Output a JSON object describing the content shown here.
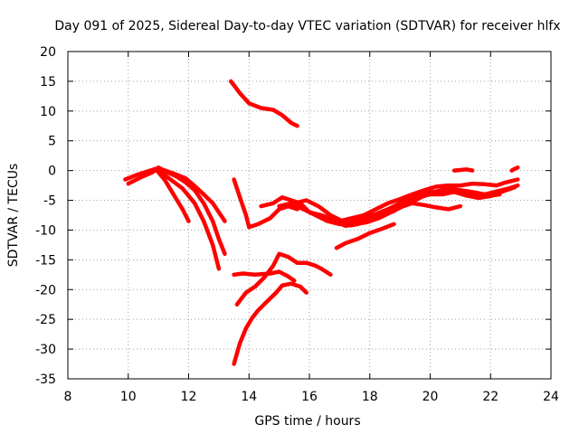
{
  "chart_data": {
    "type": "line",
    "title": "Day 091 of 2025, Sidereal Day-to-day VTEC variation (SDTVAR) for receiver hlfx",
    "xlabel": "GPS time / hours",
    "ylabel": "SDTVAR / TECUs",
    "xlim": [
      8,
      24
    ],
    "ylim": [
      -35,
      20
    ],
    "xticks": [
      8,
      10,
      12,
      14,
      16,
      18,
      20,
      22,
      24
    ],
    "yticks": [
      20,
      15,
      10,
      5,
      0,
      -5,
      -10,
      -15,
      -20,
      -25,
      -30,
      -35
    ],
    "grid": true,
    "color": "#ff0000",
    "series": [
      {
        "x": [
          9.9,
          10.3,
          10.6,
          10.9,
          11.2,
          11.5,
          11.8,
          12.0
        ],
        "y": [
          -1.5,
          -0.7,
          -0.2,
          0.3,
          -1.5,
          -4.0,
          -6.5,
          -8.5
        ]
      },
      {
        "x": [
          10.0,
          10.4,
          10.8,
          11.0,
          11.3,
          11.6,
          11.9,
          12.2,
          12.5,
          12.8,
          13.0,
          13.2
        ],
        "y": [
          -2.2,
          -1.2,
          -0.3,
          0.5,
          -0.3,
          -1.0,
          -2.0,
          -3.3,
          -5.5,
          -8.5,
          -11.5,
          -14.0
        ]
      },
      {
        "x": [
          11.0,
          11.4,
          11.8,
          12.2,
          12.5,
          12.8,
          13.0
        ],
        "y": [
          0.0,
          -1.5,
          -3.0,
          -5.5,
          -8.5,
          -12.5,
          -16.5
        ]
      },
      {
        "x": [
          11.1,
          11.5,
          11.9,
          12.2,
          12.5,
          12.8,
          13.0,
          13.2
        ],
        "y": [
          0.2,
          -0.5,
          -1.3,
          -2.6,
          -4.0,
          -5.5,
          -7.0,
          -8.5
        ]
      },
      {
        "x": [
          13.4,
          13.7,
          14.0,
          14.4,
          14.8,
          15.1,
          15.4,
          15.6
        ],
        "y": [
          15.0,
          13.0,
          11.3,
          10.5,
          10.2,
          9.3,
          8.0,
          7.5
        ]
      },
      {
        "x": [
          13.5,
          13.7,
          13.9,
          14.0
        ],
        "y": [
          -1.5,
          -4.5,
          -7.5,
          -9.5
        ]
      },
      {
        "x": [
          14.0,
          14.3,
          14.7,
          15.0,
          15.3,
          15.6
        ],
        "y": [
          -9.5,
          -9.0,
          -8.0,
          -6.5,
          -6.0,
          -6.5
        ]
      },
      {
        "x": [
          13.5,
          13.8,
          14.2,
          14.7,
          15.0,
          15.3,
          15.5
        ],
        "y": [
          -17.5,
          -17.3,
          -17.5,
          -17.3,
          -17.0,
          -17.8,
          -18.5
        ]
      },
      {
        "x": [
          13.6,
          13.9,
          14.2,
          14.5,
          14.8,
          15.0,
          15.3,
          15.6,
          15.9,
          16.2,
          16.4,
          16.7
        ],
        "y": [
          -22.5,
          -20.5,
          -19.5,
          -18.0,
          -16.0,
          -14.0,
          -14.5,
          -15.5,
          -15.5,
          -16.0,
          -16.5,
          -17.5
        ]
      },
      {
        "x": [
          13.5,
          13.7,
          13.9,
          14.1,
          14.3,
          14.5,
          14.7,
          14.9,
          15.1,
          15.4,
          15.7,
          15.9
        ],
        "y": [
          -32.5,
          -29.0,
          -26.5,
          -24.8,
          -23.5,
          -22.5,
          -21.5,
          -20.5,
          -19.3,
          -19.0,
          -19.5,
          -20.5
        ]
      },
      {
        "x": [
          14.4,
          14.8,
          15.1,
          15.4,
          15.7,
          16.0,
          16.4,
          16.7,
          17.0,
          17.4,
          17.8,
          18.2,
          18.6,
          19.0,
          19.4,
          19.8,
          20.2,
          20.6,
          21.0,
          21.4,
          21.8,
          22.2,
          22.5,
          22.9
        ],
        "y": [
          -6.0,
          -5.5,
          -4.5,
          -5.0,
          -5.5,
          -7.0,
          -7.5,
          -8.0,
          -8.5,
          -8.0,
          -7.5,
          -6.5,
          -5.5,
          -4.8,
          -4.0,
          -3.3,
          -2.7,
          -2.5,
          -2.5,
          -2.2,
          -2.3,
          -2.5,
          -2.0,
          -1.5
        ]
      },
      {
        "x": [
          15.0,
          15.4,
          15.8,
          16.2,
          16.6,
          17.0,
          17.4,
          17.8,
          18.2,
          18.6,
          19.0,
          19.4,
          19.8,
          20.2,
          20.6,
          21.0,
          21.4,
          21.8,
          22.2,
          22.6,
          22.9
        ],
        "y": [
          -6.0,
          -5.5,
          -6.5,
          -7.5,
          -8.5,
          -9.0,
          -8.7,
          -8.0,
          -7.3,
          -6.5,
          -5.5,
          -4.5,
          -3.8,
          -3.5,
          -3.0,
          -3.3,
          -3.6,
          -4.0,
          -3.5,
          -3.0,
          -2.5
        ]
      },
      {
        "x": [
          15.5,
          15.9,
          16.3,
          16.7,
          17.1,
          17.5,
          17.9,
          18.3,
          18.7,
          19.1,
          19.5,
          19.9,
          20.3,
          20.7,
          21.1,
          21.5,
          21.9,
          22.3
        ],
        "y": [
          -5.5,
          -5.0,
          -6.0,
          -7.5,
          -8.5,
          -9.0,
          -8.7,
          -8.0,
          -7.0,
          -6.0,
          -5.0,
          -4.0,
          -3.5,
          -3.5,
          -3.8,
          -4.0,
          -4.3,
          -4.0
        ]
      },
      {
        "x": [
          16.0,
          16.4,
          16.8,
          17.2,
          17.6,
          18.0,
          18.4,
          18.8,
          19.2,
          19.6,
          20.0,
          20.4,
          20.8,
          21.2,
          21.6,
          22.0,
          22.4,
          22.8
        ],
        "y": [
          -7.0,
          -7.8,
          -8.5,
          -9.3,
          -9.0,
          -8.3,
          -7.6,
          -6.8,
          -5.5,
          -4.5,
          -4.0,
          -4.0,
          -3.6,
          -4.2,
          -4.6,
          -4.3,
          -3.5,
          -2.8
        ]
      },
      {
        "x": [
          16.2,
          16.6,
          17.0,
          17.4,
          17.8,
          18.2,
          18.6,
          19.0,
          19.4,
          19.8,
          20.2,
          20.6,
          21.0
        ],
        "y": [
          -7.3,
          -8.0,
          -8.5,
          -9.2,
          -8.7,
          -7.8,
          -7.2,
          -6.2,
          -5.5,
          -5.8,
          -6.2,
          -6.5,
          -6.0
        ]
      },
      {
        "x": [
          16.9,
          17.2,
          17.6,
          18.0,
          18.4,
          18.8
        ],
        "y": [
          -13.0,
          -12.2,
          -11.5,
          -10.5,
          -9.8,
          -9.0
        ]
      },
      {
        "x": [
          20.8,
          21.0,
          21.2,
          21.4
        ],
        "y": [
          0.0,
          0.1,
          0.2,
          0.0
        ]
      },
      {
        "x": [
          22.7,
          22.8,
          22.9
        ],
        "y": [
          0.0,
          0.3,
          0.5
        ]
      }
    ]
  }
}
